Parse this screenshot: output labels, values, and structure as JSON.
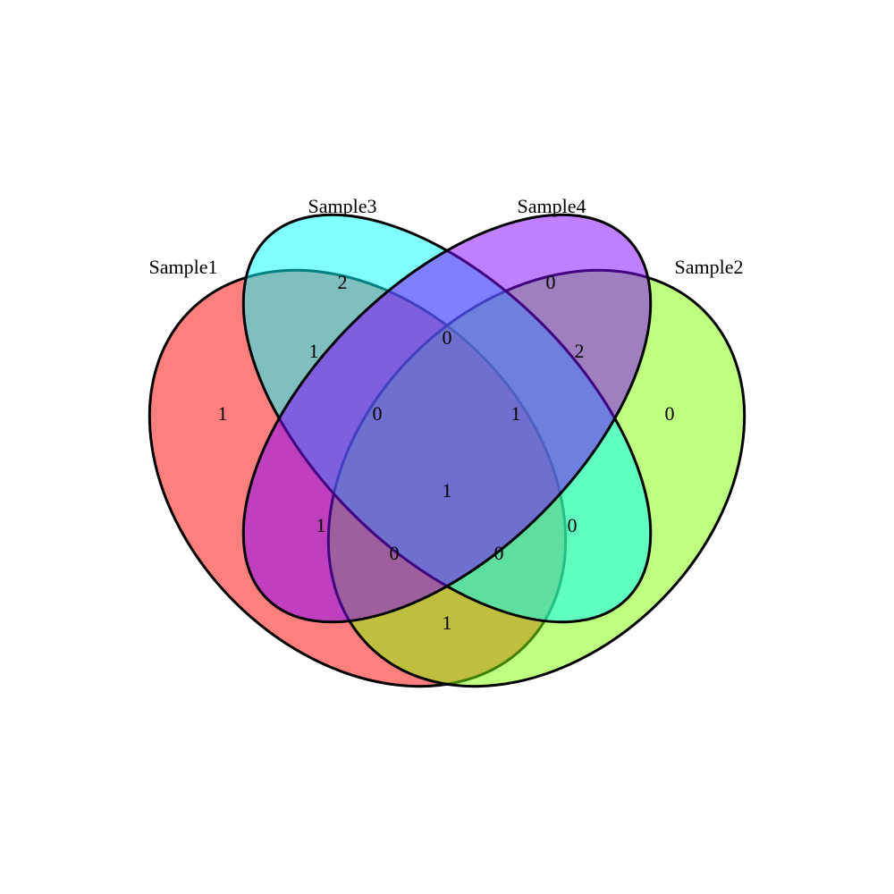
{
  "chart_data": {
    "type": "venn",
    "sets": [
      {
        "name": "Sample1",
        "color": "#ff0000"
      },
      {
        "name": "Sample2",
        "color": "#7fff00"
      },
      {
        "name": "Sample3",
        "color": "#00ffff"
      },
      {
        "name": "Sample4",
        "color": "#7f00ff"
      }
    ],
    "fill_opacity": 0.5,
    "regions": [
      {
        "sets": [
          "Sample1"
        ],
        "count": "1"
      },
      {
        "sets": [
          "Sample2"
        ],
        "count": "0"
      },
      {
        "sets": [
          "Sample3"
        ],
        "count": "2"
      },
      {
        "sets": [
          "Sample4"
        ],
        "count": "0"
      },
      {
        "sets": [
          "Sample1",
          "Sample3"
        ],
        "count": "1"
      },
      {
        "sets": [
          "Sample3",
          "Sample4"
        ],
        "count": "0"
      },
      {
        "sets": [
          "Sample2",
          "Sample4"
        ],
        "count": "2"
      },
      {
        "sets": [
          "Sample1",
          "Sample3",
          "Sample4"
        ],
        "count": "0"
      },
      {
        "sets": [
          "Sample2",
          "Sample3",
          "Sample4"
        ],
        "count": "1"
      },
      {
        "sets": [
          "Sample1",
          "Sample4"
        ],
        "count": "1"
      },
      {
        "sets": [
          "Sample1",
          "Sample2",
          "Sample3",
          "Sample4"
        ],
        "count": "1"
      },
      {
        "sets": [
          "Sample2",
          "Sample3"
        ],
        "count": "0"
      },
      {
        "sets": [
          "Sample1",
          "Sample2",
          "Sample4"
        ],
        "count": "0"
      },
      {
        "sets": [
          "Sample1",
          "Sample2",
          "Sample3"
        ],
        "count": "0"
      },
      {
        "sets": [
          "Sample1",
          "Sample2"
        ],
        "count": "1"
      }
    ]
  }
}
